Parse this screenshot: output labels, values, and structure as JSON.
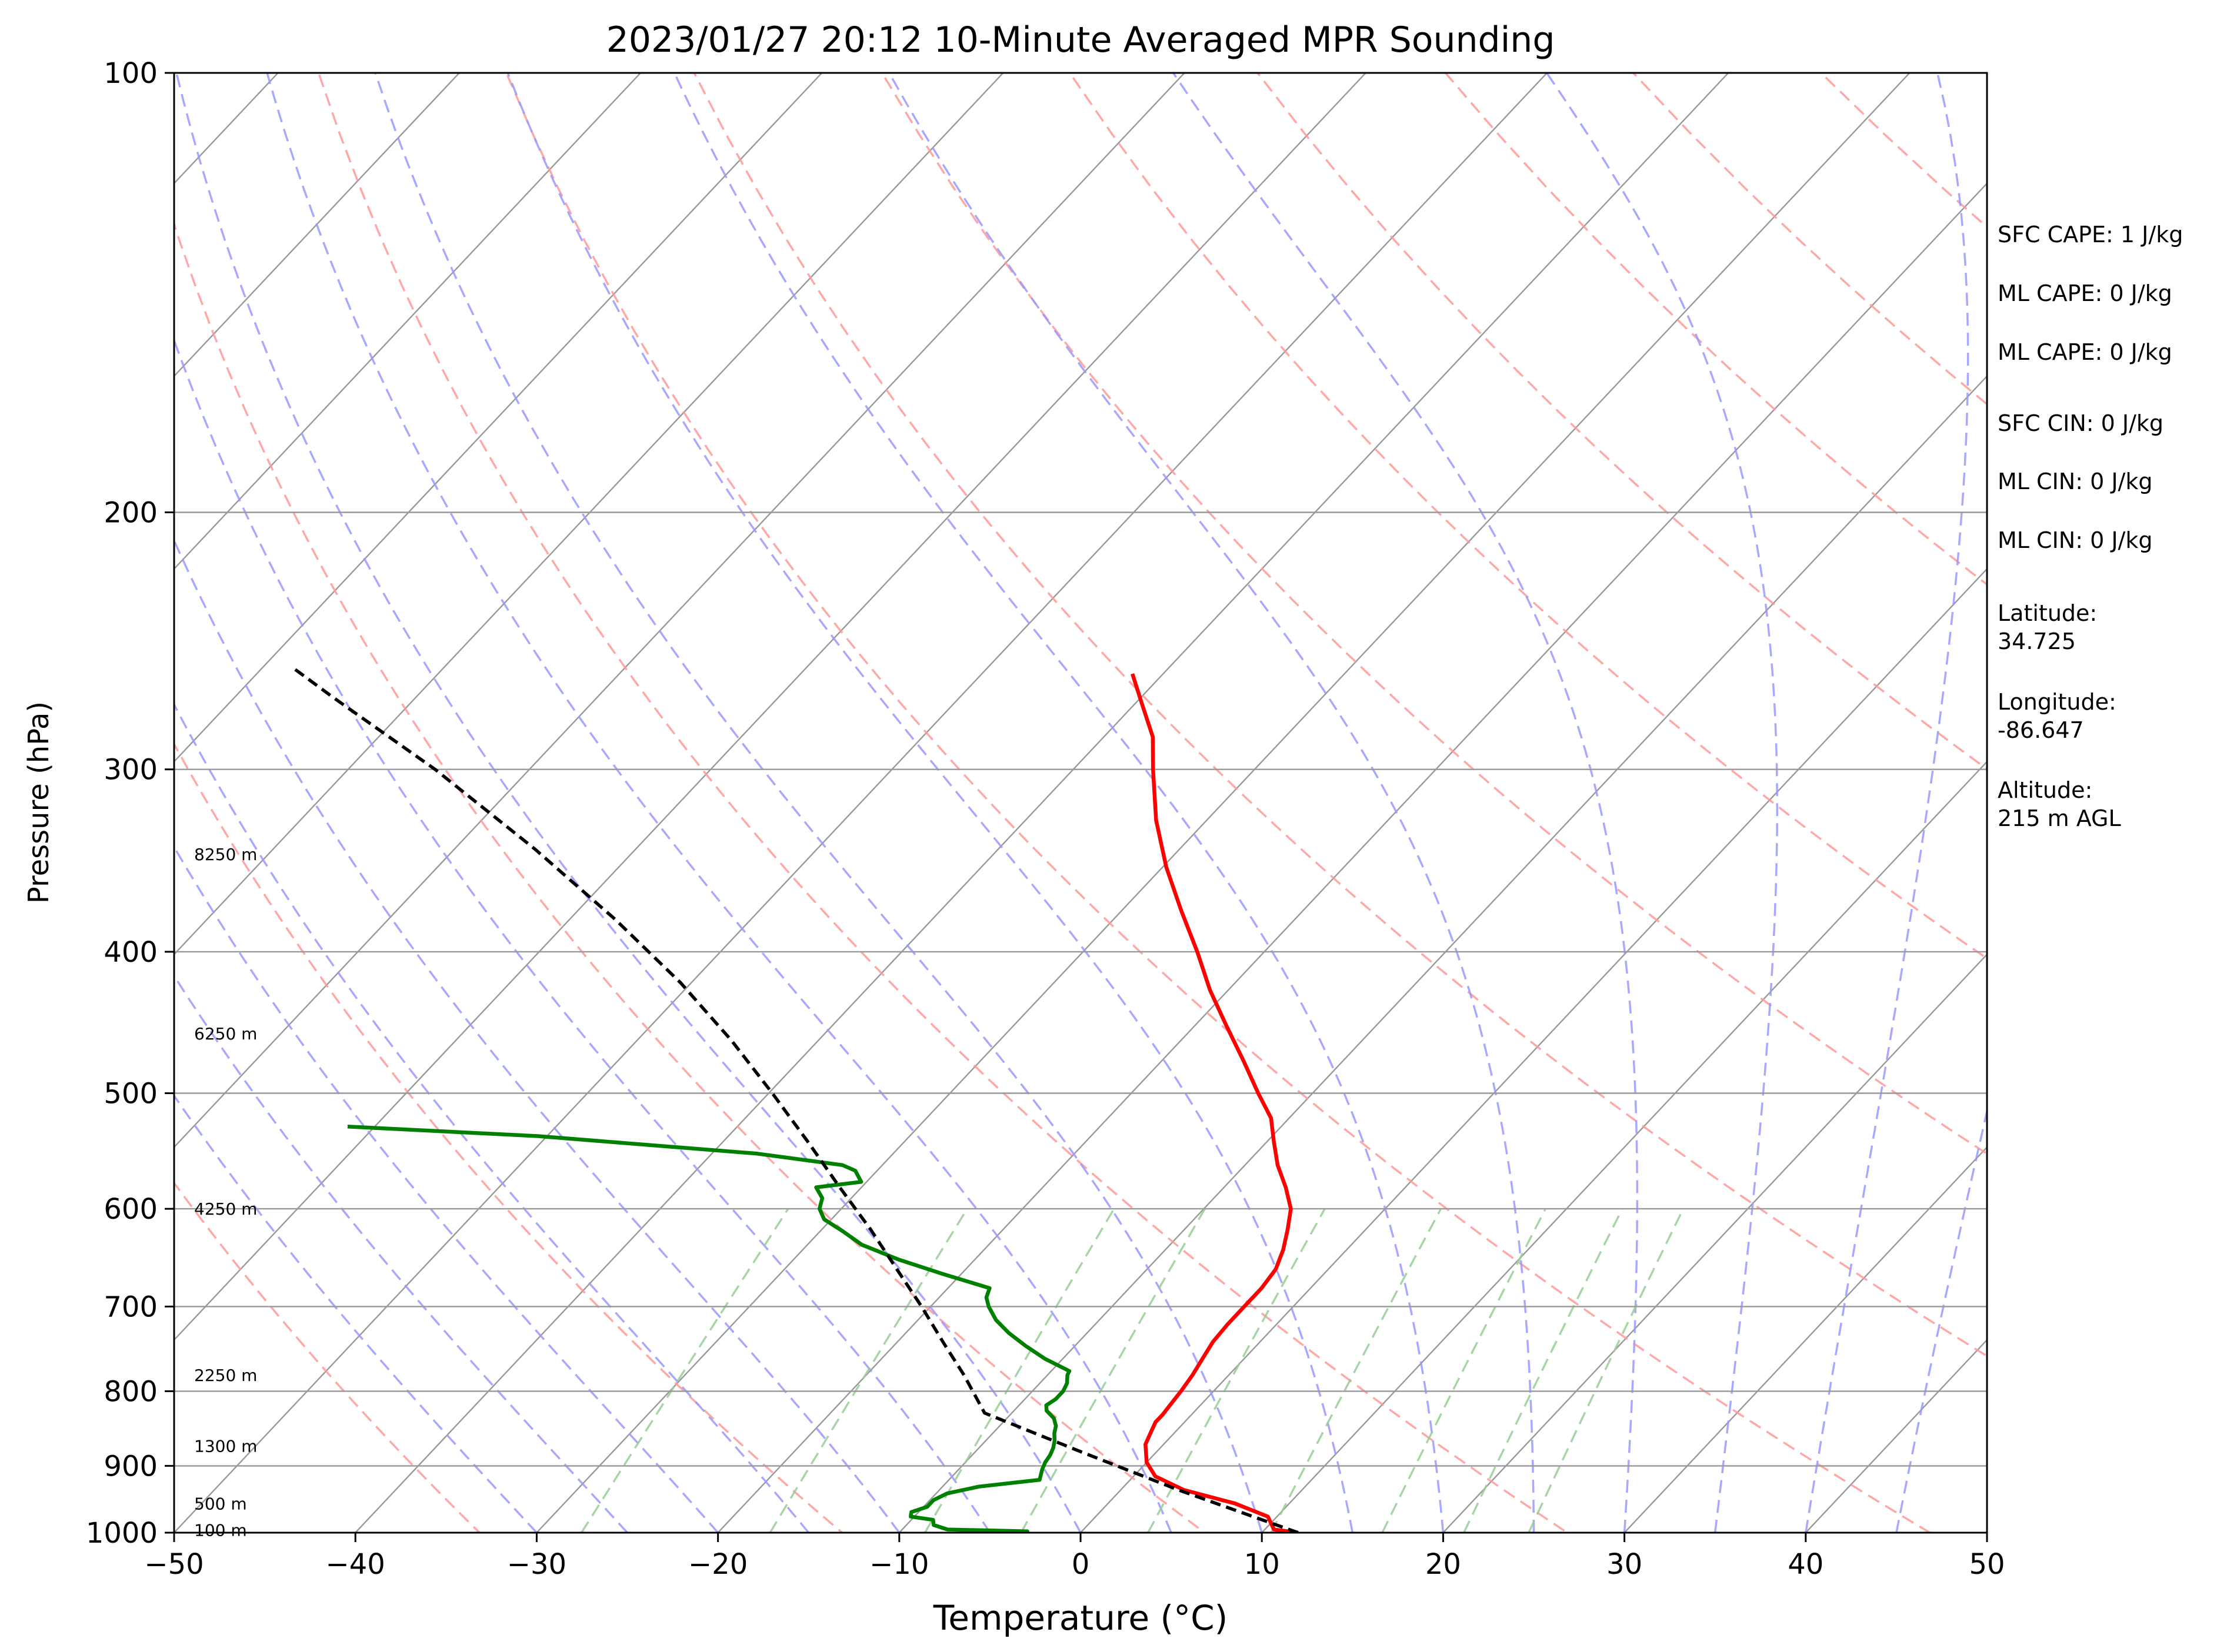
{
  "chart_data": {
    "type": "line",
    "title": "2023/01/27 20:12 10-Minute Averaged MPR Sounding",
    "xlabel": "Temperature (°C)",
    "ylabel": "Pressure (hPa)",
    "xlim": [
      -50,
      50
    ],
    "ylim": [
      1000,
      100
    ],
    "yscale": "log",
    "grid": true,
    "skew": "skew-T log-P",
    "x_ticks": [
      "−50",
      "−40",
      "−30",
      "−20",
      "−10",
      "0",
      "10",
      "20",
      "30",
      "40",
      "50"
    ],
    "y_ticks": [
      "100",
      "200",
      "300",
      "400",
      "500",
      "600",
      "700",
      "800",
      "900",
      "1000"
    ],
    "colors": {
      "temperature": "#ff0000",
      "dewpoint": "#008000",
      "parcel": "#000000",
      "isotherm": "#999999",
      "dry_adiabat": "#ff9999",
      "moist_adiabat": "#9999ff",
      "mixing_ratio": "#99cc99"
    },
    "series": [
      {
        "key": "temperature",
        "points": [
          [
            12.0,
            1000
          ],
          [
            10.5,
            995
          ],
          [
            9.5,
            975
          ],
          [
            7.0,
            955
          ],
          [
            3.5,
            935
          ],
          [
            1.2,
            915
          ],
          [
            0,
            895
          ],
          [
            -1.0,
            870
          ],
          [
            -1.3,
            855
          ],
          [
            -1.6,
            840
          ],
          [
            -1.6,
            830
          ],
          [
            -1.7,
            815
          ],
          [
            -1.8,
            800
          ],
          [
            -2.0,
            780
          ],
          [
            -2.3,
            760
          ],
          [
            -2.6,
            740
          ],
          [
            -2.7,
            720
          ],
          [
            -2.7,
            700
          ],
          [
            -2.7,
            680
          ],
          [
            -2.9,
            660
          ],
          [
            -3.5,
            640
          ],
          [
            -4.3,
            620
          ],
          [
            -5.2,
            600
          ],
          [
            -6.6,
            580
          ],
          [
            -8.2,
            560
          ],
          [
            -9.6,
            540
          ],
          [
            -11.0,
            520
          ],
          [
            -13.0,
            500
          ],
          [
            -15.5,
            475
          ],
          [
            -18.2,
            450
          ],
          [
            -21.0,
            425
          ],
          [
            -23.7,
            400
          ],
          [
            -26.7,
            375
          ],
          [
            -29.8,
            350
          ],
          [
            -32.8,
            325
          ],
          [
            -35.6,
            300
          ],
          [
            -37.3,
            285
          ],
          [
            -39.7,
            270
          ],
          [
            -41.7,
            258
          ]
        ]
      },
      {
        "key": "dewpoint",
        "points": [
          [
            -3.0,
            1000
          ],
          [
            -3.0,
            998
          ],
          [
            -7.5,
            995
          ],
          [
            -8.5,
            988
          ],
          [
            -8.8,
            980
          ],
          [
            -10.2,
            975
          ],
          [
            -10.4,
            968
          ],
          [
            -9.8,
            960
          ],
          [
            -9.8,
            950
          ],
          [
            -9.4,
            940
          ],
          [
            -8.0,
            930
          ],
          [
            -5.0,
            920
          ],
          [
            -5.4,
            905
          ],
          [
            -5.6,
            895
          ],
          [
            -5.7,
            885
          ],
          [
            -5.9,
            875
          ],
          [
            -6.2,
            865
          ],
          [
            -6.6,
            855
          ],
          [
            -6.9,
            845
          ],
          [
            -7.4,
            835
          ],
          [
            -8.2,
            825
          ],
          [
            -8.5,
            818
          ],
          [
            -8.3,
            810
          ],
          [
            -8.3,
            800
          ],
          [
            -8.5,
            790
          ],
          [
            -8.9,
            780
          ],
          [
            -9.0,
            775
          ],
          [
            -11.0,
            760
          ],
          [
            -12.7,
            745
          ],
          [
            -14.3,
            730
          ],
          [
            -15.7,
            715
          ],
          [
            -16.8,
            700
          ],
          [
            -17.4,
            690
          ],
          [
            -17.7,
            680
          ],
          [
            -21.0,
            665
          ],
          [
            -24.2,
            650
          ],
          [
            -27.0,
            635
          ],
          [
            -28.7,
            622
          ],
          [
            -30.4,
            610
          ],
          [
            -31.2,
            600
          ],
          [
            -31.6,
            590
          ],
          [
            -32.5,
            580
          ],
          [
            -30.3,
            575
          ],
          [
            -31.2,
            565
          ],
          [
            -32.2,
            560
          ],
          [
            -37.5,
            550
          ],
          [
            -50.5,
            535
          ],
          [
            -61.5,
            527
          ]
        ]
      },
      {
        "key": "parcel",
        "points": [
          [
            12.0,
            1000
          ],
          [
            3.2,
            935
          ],
          [
            -4.2,
            880
          ],
          [
            -11.5,
            828
          ],
          [
            -14.6,
            780
          ],
          [
            -17.5,
            740
          ],
          [
            -20.5,
            700
          ],
          [
            -23.8,
            660
          ],
          [
            -27.3,
            620
          ],
          [
            -31.2,
            580
          ],
          [
            -35.3,
            540
          ],
          [
            -39.8,
            500
          ],
          [
            -44.8,
            460
          ],
          [
            -50.6,
            420
          ],
          [
            -57.5,
            380
          ],
          [
            -65.6,
            340
          ],
          [
            -75.2,
            300
          ],
          [
            -84.5,
            268
          ],
          [
            -88.5,
            255
          ]
        ]
      }
    ],
    "annotations": [
      {
        "label": "SFC CAPE: 1 J/kg"
      },
      {
        "label": "ML CAPE: 0 J/kg"
      },
      {
        "label": "ML CAPE: 0 J/kg"
      },
      {
        "label": "SFC CIN: 0 J/kg"
      },
      {
        "label": "ML CIN: 0 J/kg"
      },
      {
        "label": "ML CIN: 0 J/kg"
      },
      {
        "label": "Latitude:",
        "value": "34.725"
      },
      {
        "label": "Longitude:",
        "value": "-86.647"
      },
      {
        "label": "Altitude:",
        "value": "215 m AGL"
      }
    ],
    "height_labels": [
      {
        "label": "8250 m",
        "p": 343
      },
      {
        "label": "6250 m",
        "p": 455
      },
      {
        "label": "4250 m",
        "p": 600
      },
      {
        "label": "2250 m",
        "p": 780
      },
      {
        "label": "1300 m",
        "p": 872
      },
      {
        "label": "500 m",
        "p": 955
      },
      {
        "label": "100 m",
        "p": 996
      }
    ]
  }
}
